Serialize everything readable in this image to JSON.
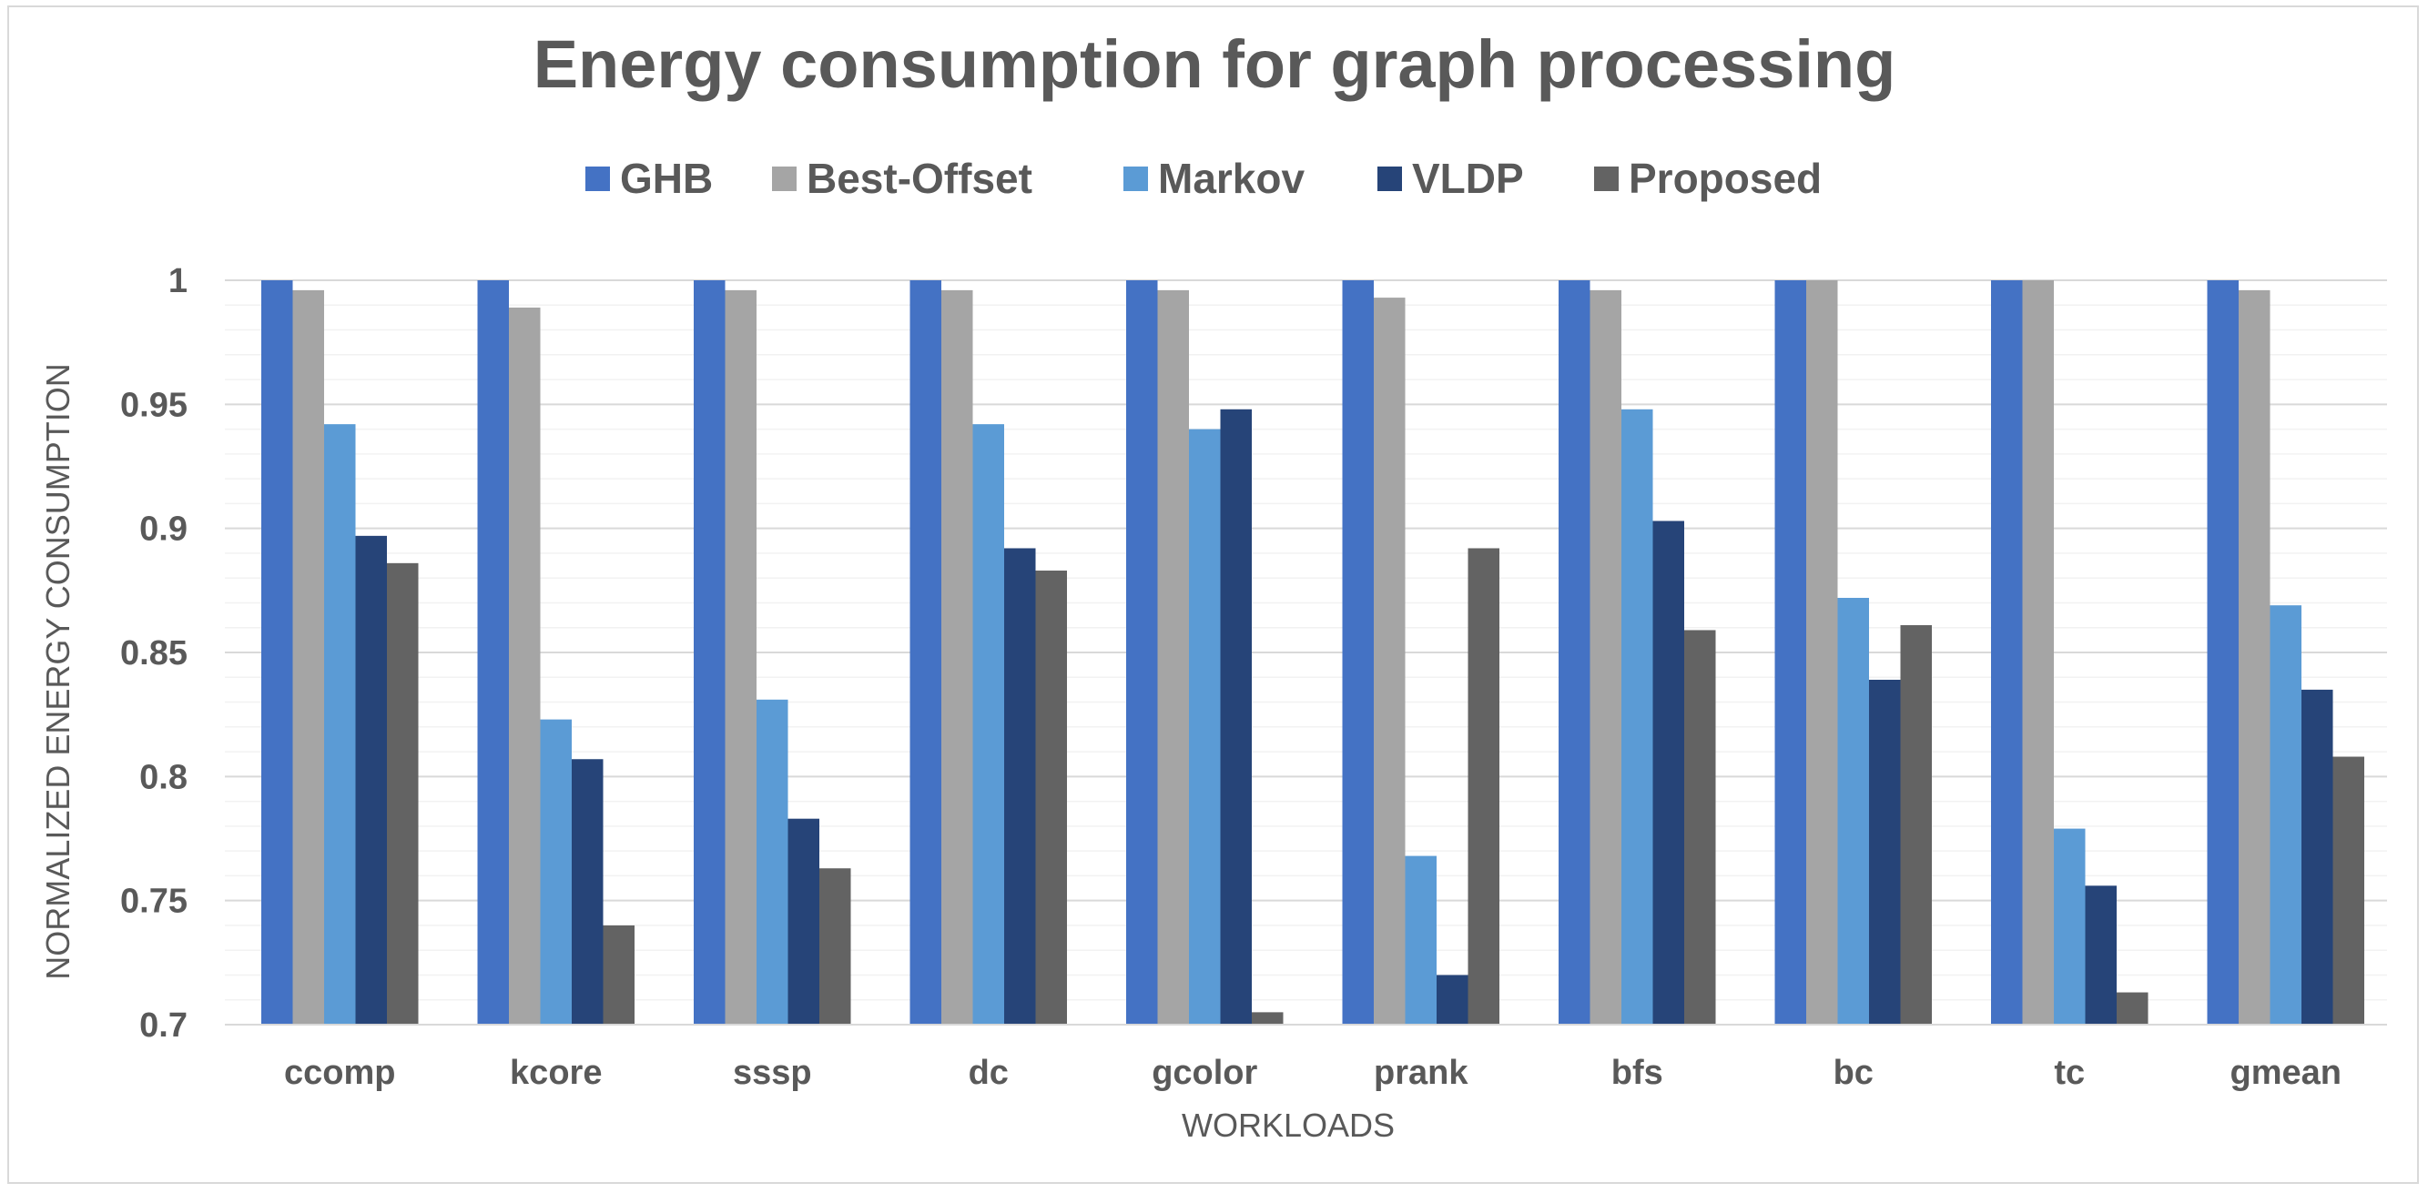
{
  "chart_data": {
    "type": "bar",
    "title": "Energy consumption for graph processing",
    "xlabel": "WORKLOADS",
    "ylabel": "NORMALIZED ENERGY CONSUMPTION",
    "ylim": [
      0.7,
      1.0
    ],
    "yticks": [
      0.7,
      0.75,
      0.8,
      0.85,
      0.9,
      0.95,
      1
    ],
    "ytick_labels": [
      "0.7",
      "0.75",
      "0.8",
      "0.85",
      "0.9",
      "0.95",
      "1"
    ],
    "grid": true,
    "legend_position": "top",
    "categories": [
      "ccomp",
      "kcore",
      "sssp",
      "dc",
      "gcolor",
      "prank",
      "bfs",
      "bc",
      "tc",
      "gmean"
    ],
    "series": [
      {
        "name": "GHB",
        "color": "#4472c4",
        "values": [
          1,
          1,
          1,
          1,
          1,
          1,
          1,
          1,
          1,
          1
        ]
      },
      {
        "name": "Best-Offset",
        "color": "#a5a5a5",
        "values": [
          0.996,
          0.989,
          0.996,
          0.996,
          0.996,
          0.993,
          0.996,
          1,
          1,
          0.996
        ]
      },
      {
        "name": "Markov",
        "color": "#5b9bd5",
        "values": [
          0.942,
          0.823,
          0.831,
          0.942,
          0.94,
          0.768,
          0.948,
          0.872,
          0.779,
          0.869
        ]
      },
      {
        "name": "VLDP",
        "color": "#264478",
        "values": [
          0.897,
          0.807,
          0.783,
          0.892,
          0.948,
          0.72,
          0.903,
          0.839,
          0.756,
          0.835
        ]
      },
      {
        "name": "Proposed",
        "color": "#636363",
        "values": [
          0.886,
          0.74,
          0.763,
          0.883,
          0.705,
          0.892,
          0.859,
          0.861,
          0.713,
          0.808
        ]
      }
    ]
  }
}
